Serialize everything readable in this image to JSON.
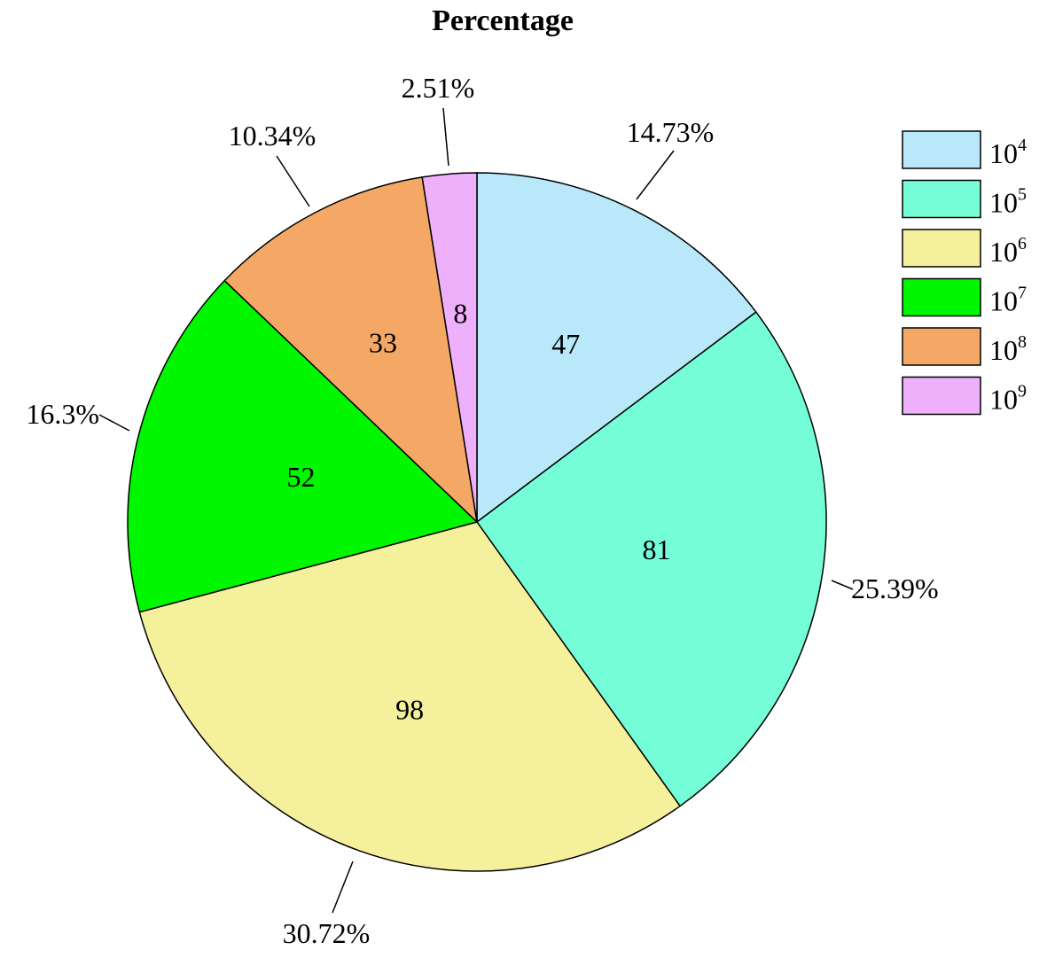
{
  "chart_data": {
    "type": "pie",
    "title": "Percentage",
    "categories": [
      "10^4",
      "10^5",
      "10^6",
      "10^7",
      "10^8",
      "10^9"
    ],
    "values": [
      47,
      81,
      98,
      52,
      33,
      8
    ],
    "value_labels": [
      "47",
      "81",
      "98",
      "52",
      "33",
      "8"
    ],
    "percent_labels": [
      "14.73%",
      "25.39%",
      "30.72%",
      "16.3%",
      "10.34%",
      "2.51%"
    ],
    "colors": [
      "#b9e8fa",
      "#74fdd7",
      "#f5f09b",
      "#00f700",
      "#f5a865",
      "#eeb0fa"
    ],
    "legend": {
      "placement": "top-right",
      "entries": [
        {
          "base": "10",
          "exp": "4",
          "color": "#b9e8fa"
        },
        {
          "base": "10",
          "exp": "5",
          "color": "#74fdd7"
        },
        {
          "base": "10",
          "exp": "6",
          "color": "#f5f09b"
        },
        {
          "base": "10",
          "exp": "7",
          "color": "#00f700"
        },
        {
          "base": "10",
          "exp": "8",
          "color": "#f5a865"
        },
        {
          "base": "10",
          "exp": "9",
          "color": "#eeb0fa"
        }
      ]
    }
  }
}
